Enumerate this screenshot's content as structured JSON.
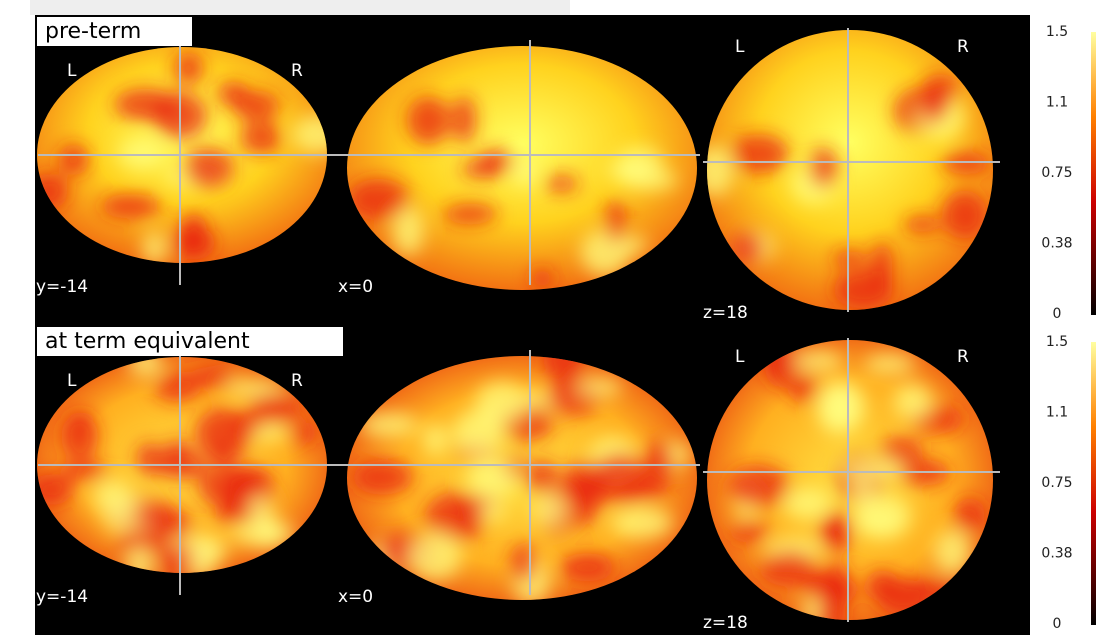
{
  "panels": [
    {
      "title": "pre-term",
      "coronal": {
        "left": "L",
        "right": "R",
        "coord": "y=-14"
      },
      "sagittal": {
        "coord": "x=0"
      },
      "axial": {
        "left": "L",
        "right": "R",
        "coord": "z=18"
      },
      "colorbar": {
        "ticks": [
          1.5,
          1.1,
          0.75,
          0.38,
          0
        ]
      }
    },
    {
      "title": "at term equivalent",
      "coronal": {
        "left": "L",
        "right": "R",
        "coord": "y=-14"
      },
      "sagittal": {
        "coord": "x=0"
      },
      "axial": {
        "left": "L",
        "right": "R",
        "coord": "z=18"
      },
      "colorbar": {
        "ticks": [
          1.5,
          1.1,
          0.75,
          0.38,
          0
        ]
      }
    }
  ]
}
